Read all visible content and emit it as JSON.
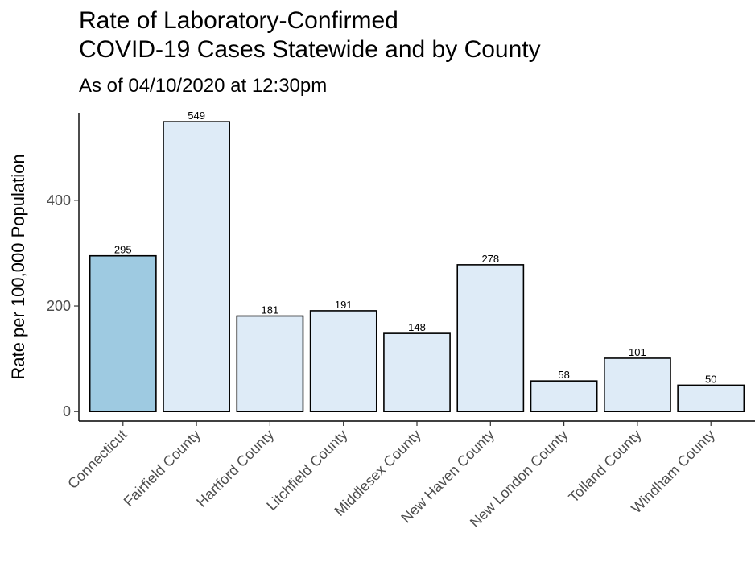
{
  "chart_data": {
    "type": "bar",
    "title": "Rate of Laboratory-Confirmed\nCOVID-19 Cases Statewide and by County",
    "subtitle": "As of 04/10/2020 at 12:30pm",
    "ylabel": "Rate per 100,000 Population",
    "xlabel": "",
    "categories": [
      "Connecticut",
      "Fairfield County",
      "Hartford County",
      "Litchfield County",
      "Middlesex County",
      "New Haven County",
      "New London County",
      "Tolland County",
      "Windham County"
    ],
    "values": [
      295,
      549,
      181,
      191,
      148,
      278,
      58,
      101,
      50
    ],
    "data_labels": [
      "295",
      "549",
      "181",
      "191",
      "148",
      "278",
      "58",
      "101",
      "50"
    ],
    "yticks": [
      0,
      200,
      400
    ],
    "ytick_labels": [
      "0",
      "200",
      "400"
    ],
    "ylim": [
      -18,
      566
    ],
    "colors": {
      "statewide": "#9ecae1",
      "county": "#deebf7",
      "edge": "#000000"
    },
    "grid": false,
    "legend": "none"
  }
}
